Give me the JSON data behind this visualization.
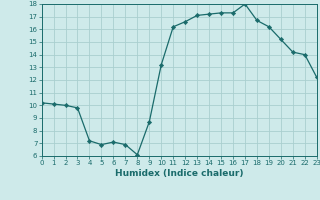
{
  "x": [
    0,
    1,
    2,
    3,
    4,
    5,
    6,
    7,
    8,
    9,
    10,
    11,
    12,
    13,
    14,
    15,
    16,
    17,
    18,
    19,
    20,
    21,
    22,
    23
  ],
  "y": [
    10.2,
    10.1,
    10.0,
    9.8,
    7.2,
    6.9,
    7.1,
    6.9,
    6.1,
    8.7,
    13.2,
    16.2,
    16.6,
    17.1,
    17.2,
    17.3,
    17.3,
    18.0,
    16.7,
    16.2,
    15.2,
    14.2,
    14.0,
    12.2
  ],
  "xlim": [
    0,
    23
  ],
  "ylim": [
    6,
    18
  ],
  "xticks": [
    0,
    1,
    2,
    3,
    4,
    5,
    6,
    7,
    8,
    9,
    10,
    11,
    12,
    13,
    14,
    15,
    16,
    17,
    18,
    19,
    20,
    21,
    22,
    23
  ],
  "yticks": [
    6,
    7,
    8,
    9,
    10,
    11,
    12,
    13,
    14,
    15,
    16,
    17,
    18
  ],
  "xlabel": "Humidex (Indice chaleur)",
  "line_color": "#1a6b6b",
  "marker": "D",
  "marker_size": 2.2,
  "bg_color": "#ceeaea",
  "grid_color": "#aacfcf",
  "tick_color": "#1a6b6b",
  "tick_fontsize": 5.0,
  "xlabel_fontsize": 6.5,
  "linewidth": 0.9
}
